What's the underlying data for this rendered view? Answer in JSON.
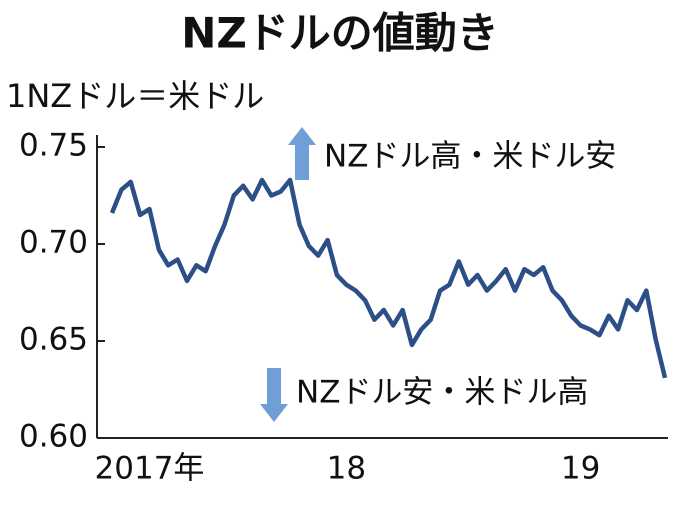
{
  "chart_data": {
    "type": "line",
    "title": "NZドルの値動き",
    "subtitle": "1NZドル＝米ドル",
    "annotations": [
      "NZドル高・米ドル安",
      "NZドル安・米ドル高"
    ],
    "categories": [
      null,
      null,
      null,
      null,
      "2017年",
      null,
      null,
      null,
      null,
      null,
      null,
      null,
      null,
      null,
      null,
      null,
      null,
      null,
      null,
      null,
      null,
      null,
      null,
      null,
      null,
      "18",
      null,
      null,
      null,
      null,
      null,
      null,
      null,
      null,
      null,
      null,
      null,
      null,
      null,
      null,
      null,
      null,
      null,
      null,
      null,
      null,
      null,
      null,
      null,
      null,
      "19",
      null,
      null,
      null,
      null,
      null,
      null,
      null,
      null,
      null
    ],
    "series": [
      {
        "color": "#2b4f86",
        "values": [
          0.716,
          0.728,
          0.732,
          0.715,
          0.718,
          0.697,
          0.689,
          0.692,
          0.681,
          0.689,
          0.686,
          0.699,
          0.71,
          0.725,
          0.73,
          0.723,
          0.733,
          0.725,
          0.727,
          0.733,
          0.71,
          0.699,
          0.694,
          0.702,
          0.684,
          0.679,
          0.676,
          0.671,
          0.661,
          0.666,
          0.658,
          0.666,
          0.648,
          0.656,
          0.661,
          0.676,
          0.679,
          0.691,
          0.679,
          0.684,
          0.676,
          0.681,
          0.687,
          0.676,
          0.687,
          0.684,
          0.688,
          0.676,
          0.671,
          0.663,
          0.658,
          0.656,
          0.653,
          0.663,
          0.656,
          0.671,
          0.666,
          0.676,
          0.651,
          0.631
        ]
      }
    ],
    "ylim": [
      0.6,
      0.75
    ],
    "yticks": [
      {
        "value": 0.6,
        "label": "0.60"
      },
      0.65,
      {
        "value": 0.7,
        "label": "0.70"
      },
      0.75
    ]
  }
}
